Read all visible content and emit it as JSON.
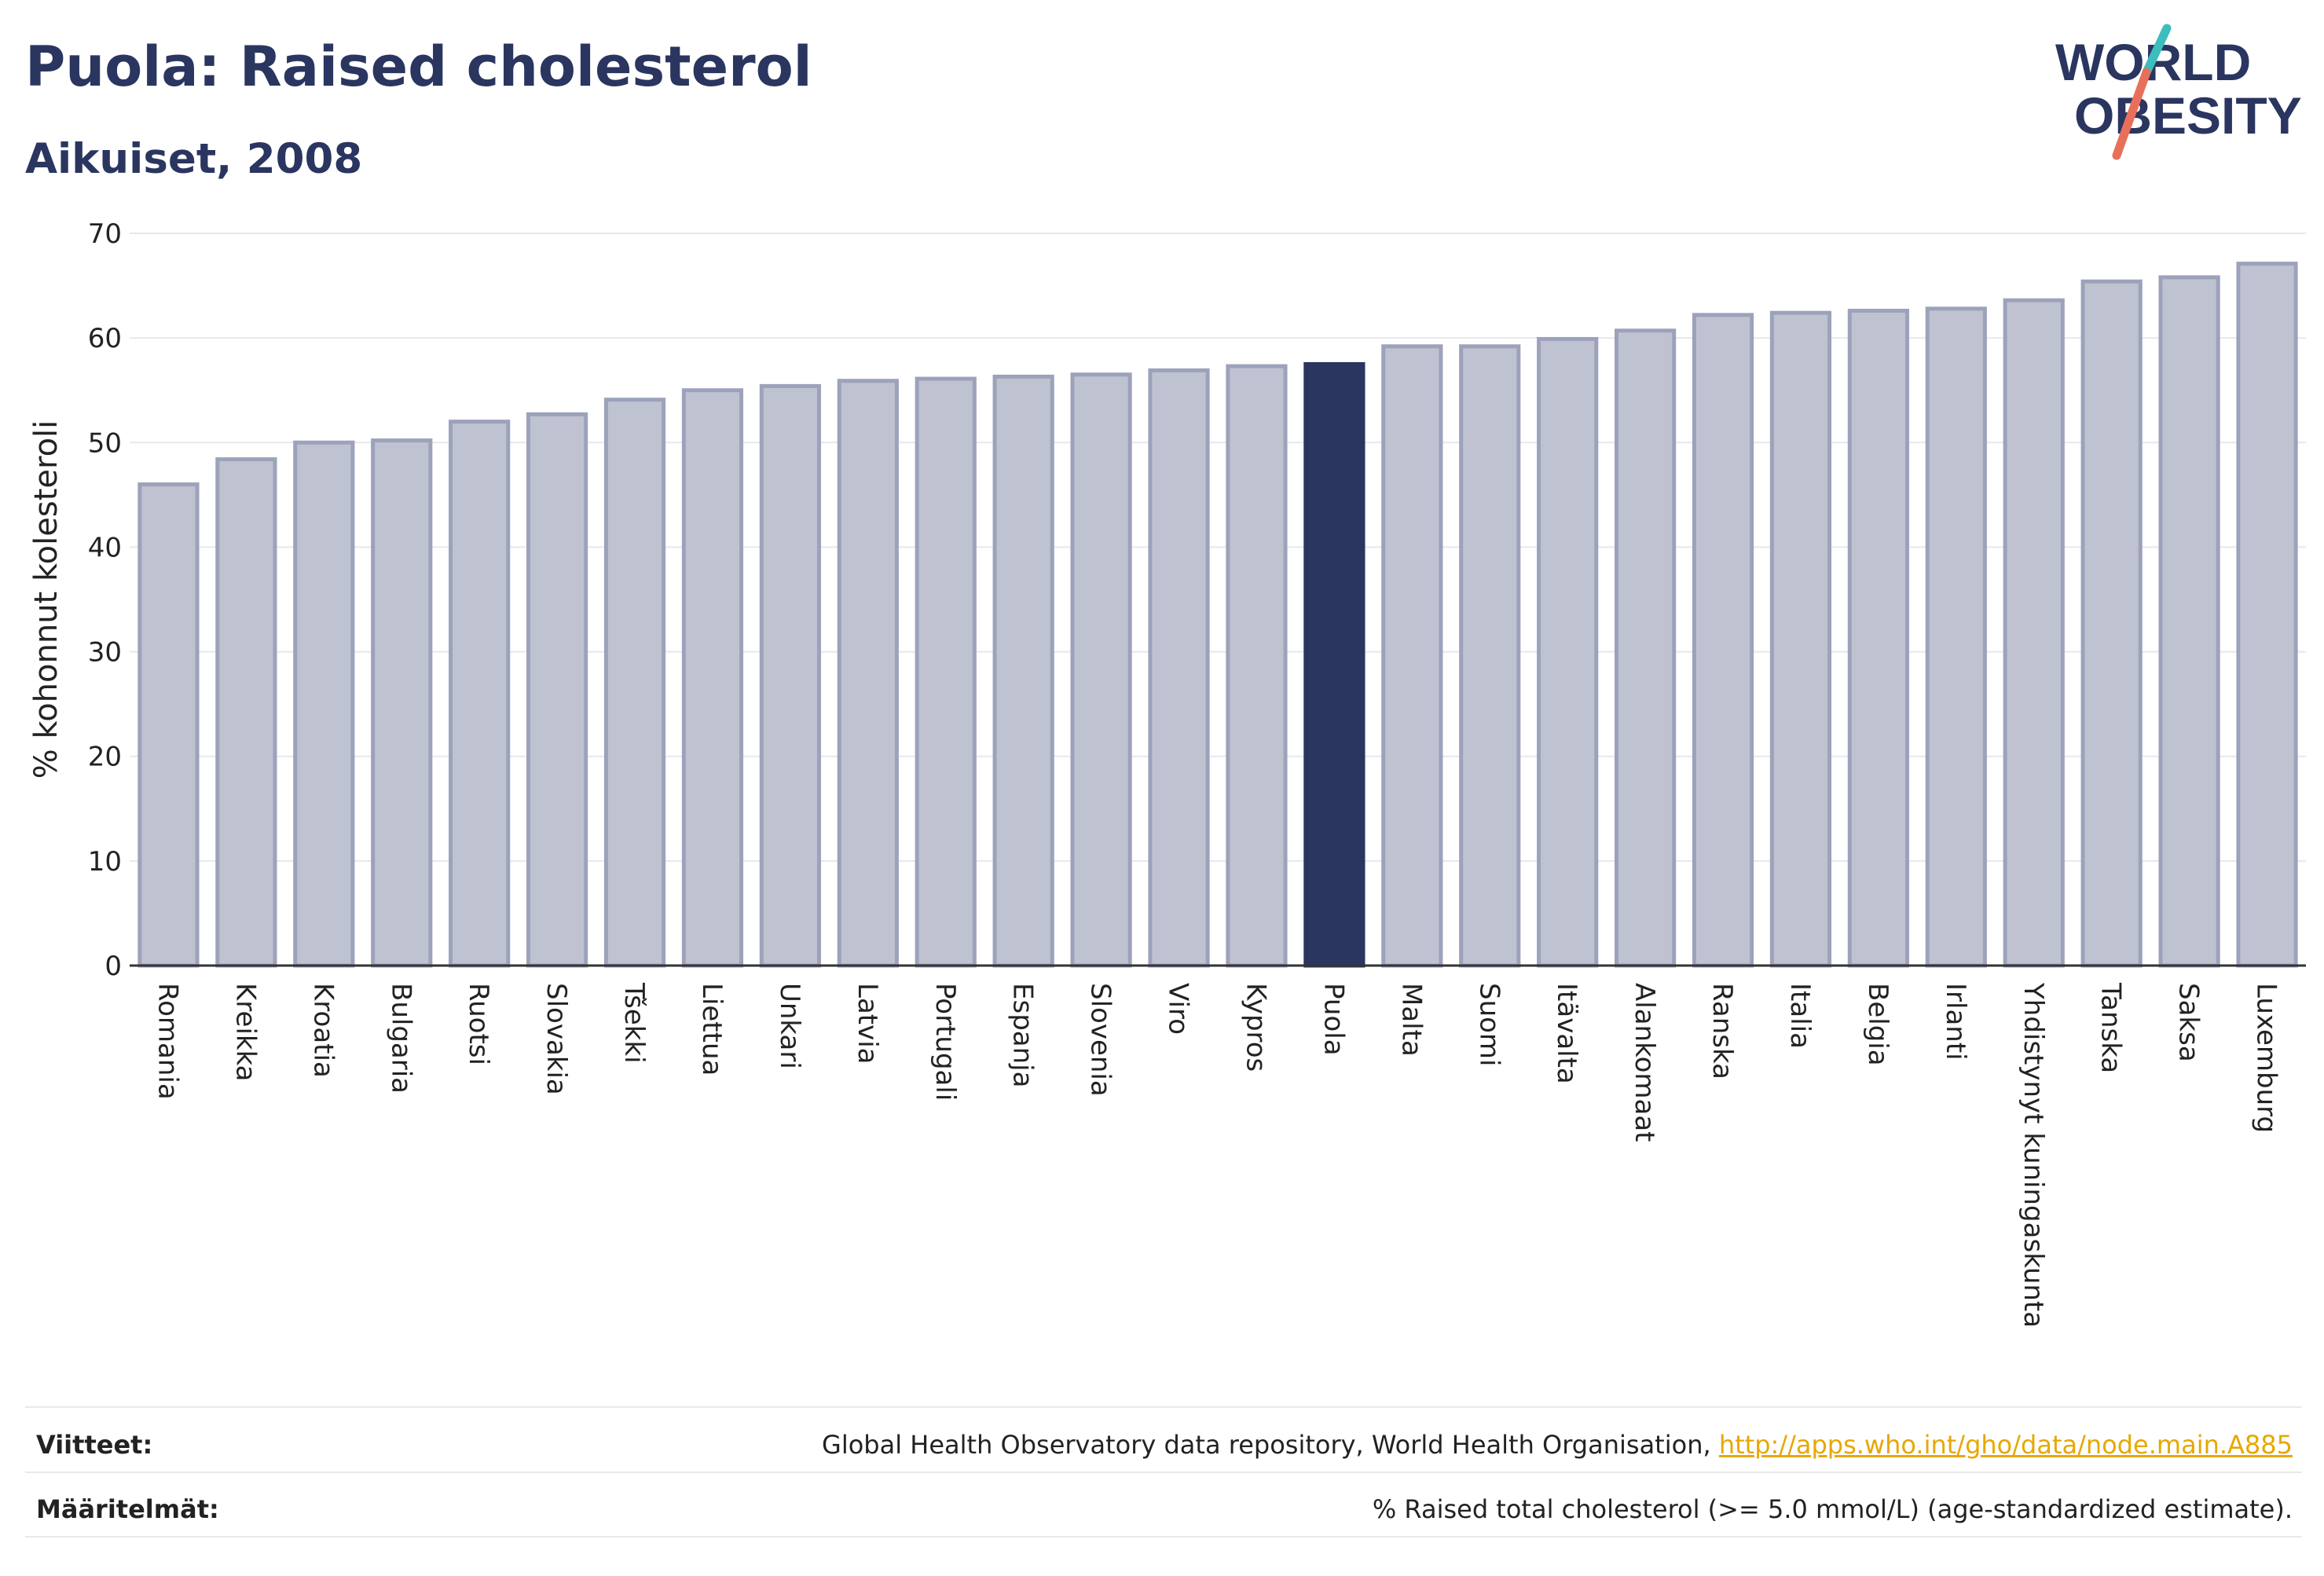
{
  "header": {
    "title": "Puola: Raised cholesterol",
    "subtitle": "Aikuiset, 2008"
  },
  "logo": {
    "line1": "WORLD",
    "line2": "OBESITY"
  },
  "colors": {
    "highlight": "#2a3560",
    "bar_fill": "#bfc2d0",
    "bar_stroke": "#9da2bb",
    "grid": "#e6e8ee",
    "logo_teal": "#3dbdbd",
    "logo_coral": "#e8705a",
    "link": "#e6a800"
  },
  "chart_data": {
    "type": "bar",
    "title": "Puola: Raised cholesterol",
    "subtitle": "Aikuiset, 2008",
    "xlabel": "",
    "ylabel": "% kohonnut kolesteroli",
    "ylim": [
      0,
      70
    ],
    "yticks": [
      0,
      10,
      20,
      30,
      40,
      50,
      60,
      70
    ],
    "grid": true,
    "highlight": "Puola",
    "categories": [
      "Romania",
      "Kreikka",
      "Kroatia",
      "Bulgaria",
      "Ruotsi",
      "Slovakia",
      "Tšekki",
      "Liettua",
      "Unkari",
      "Latvia",
      "Portugali",
      "Espanja",
      "Slovenia",
      "Viro",
      "Kypros",
      "Puola",
      "Malta",
      "Suomi",
      "Itävalta",
      "Alankomaat",
      "Ranska",
      "Italia",
      "Belgia",
      "Irlanti",
      "Yhdistynyt kuningaskunta",
      "Tanska",
      "Saksa",
      "Luxemburg"
    ],
    "values": [
      46.0,
      48.4,
      50.0,
      50.2,
      52.0,
      52.7,
      54.1,
      55.0,
      55.4,
      55.9,
      56.1,
      56.3,
      56.5,
      56.9,
      57.3,
      57.5,
      59.2,
      59.2,
      59.9,
      60.7,
      62.2,
      62.4,
      62.6,
      62.8,
      63.6,
      65.4,
      65.8,
      67.1
    ]
  },
  "footer": {
    "sources_label": "Viitteet:",
    "sources_text": "Global Health Observatory data repository, World Health Organisation,",
    "sources_link": "http://apps.who.int/gho/data/node.main.A885",
    "definitions_label": "Määritelmät:",
    "definitions_text": "% Raised total cholesterol (>= 5.0 mmol/L) (age-standardized estimate)."
  }
}
